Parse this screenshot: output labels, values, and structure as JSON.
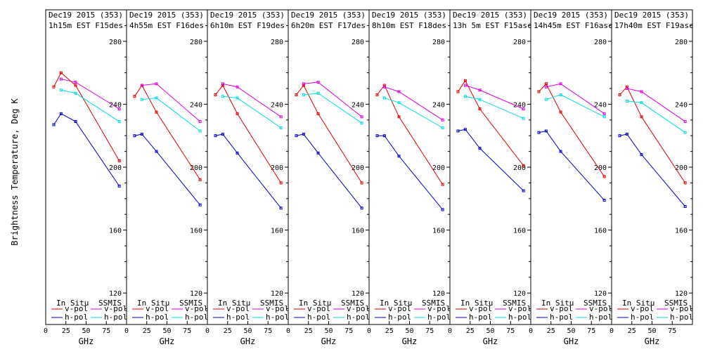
{
  "ylabel": "Brightness Temperature, Deg K",
  "xlabel": "GHz",
  "legend": {
    "col1_title": "In Situ",
    "col2_title": "SSMIS",
    "vpol": "v-pol",
    "hpol": "h-pol"
  },
  "colors": {
    "insitu_v": "#dd0000",
    "insitu_h": "#0000cc",
    "ssmis_v": "#dd00dd",
    "ssmis_h": "#00dddd"
  },
  "chart_data": {
    "type": "line",
    "xlim": [
      0,
      100
    ],
    "ylim": [
      100,
      300
    ],
    "xticks": [
      0,
      25,
      50,
      75,
      100
    ],
    "xtick_labels": [
      "0",
      "25",
      "50",
      "75"
    ],
    "yticks": [
      120,
      160,
      200,
      240,
      280
    ],
    "x": [
      10,
      19,
      37,
      91
    ],
    "panels": [
      {
        "title1": "Dec19 2015 (353)",
        "title2": "1h15m  EST F15des",
        "insitu_v": [
          251,
          260,
          252,
          204
        ],
        "insitu_h": [
          227,
          234,
          229,
          188
        ],
        "ssmis_v": [
          null,
          256,
          254,
          237
        ],
        "ssmis_h": [
          null,
          249,
          247,
          229
        ]
      },
      {
        "title1": "Dec19 2015 (353)",
        "title2": "4h55m  EST F16des",
        "insitu_v": [
          245,
          252,
          235,
          192
        ],
        "insitu_h": [
          220,
          221,
          210,
          176
        ],
        "ssmis_v": [
          null,
          252,
          253,
          229
        ],
        "ssmis_h": [
          null,
          243,
          244,
          223
        ]
      },
      {
        "title1": "Dec19 2015 (353)",
        "title2": "6h10m  EST F19des",
        "insitu_v": [
          246,
          252,
          234,
          190
        ],
        "insitu_h": [
          220,
          221,
          209,
          174
        ],
        "ssmis_v": [
          null,
          253,
          251,
          232
        ],
        "ssmis_h": [
          null,
          245,
          244,
          225
        ]
      },
      {
        "title1": "Dec19 2015 (353)",
        "title2": "6h20m  EST F17des",
        "insitu_v": [
          246,
          252,
          234,
          190
        ],
        "insitu_h": [
          220,
          221,
          209,
          174
        ],
        "ssmis_v": [
          null,
          253,
          254,
          232
        ],
        "ssmis_h": [
          null,
          246,
          247,
          228
        ]
      },
      {
        "title1": "Dec19 2015 (353)",
        "title2": "8h10m  EST F18des",
        "insitu_v": [
          246,
          252,
          232,
          189
        ],
        "insitu_h": [
          220,
          220,
          207,
          173
        ],
        "ssmis_v": [
          null,
          251,
          248,
          230
        ],
        "ssmis_h": [
          null,
          244,
          241,
          225
        ]
      },
      {
        "title1": "Dec19 2015 (353)",
        "title2": "13h 5m  EST F15asc",
        "insitu_v": [
          248,
          255,
          237,
          201
        ],
        "insitu_h": [
          223,
          224,
          212,
          185
        ],
        "ssmis_v": [
          null,
          252,
          249,
          237
        ],
        "ssmis_h": [
          null,
          245,
          243,
          231
        ]
      },
      {
        "title1": "Dec19 2015 (353)",
        "title2": "14h45m  EST F16asc",
        "insitu_v": [
          248,
          253,
          235,
          194
        ],
        "insitu_h": [
          222,
          223,
          210,
          179
        ],
        "ssmis_v": [
          null,
          251,
          253,
          234
        ],
        "ssmis_h": [
          null,
          243,
          246,
          232
        ]
      },
      {
        "title1": "Dec19 2015 (353)",
        "title2": "17h40m  EST F19asc",
        "insitu_v": [
          246,
          251,
          232,
          190
        ],
        "insitu_h": [
          220,
          221,
          208,
          175
        ],
        "ssmis_v": [
          null,
          250,
          248,
          229
        ],
        "ssmis_h": [
          null,
          242,
          241,
          222
        ]
      }
    ]
  }
}
